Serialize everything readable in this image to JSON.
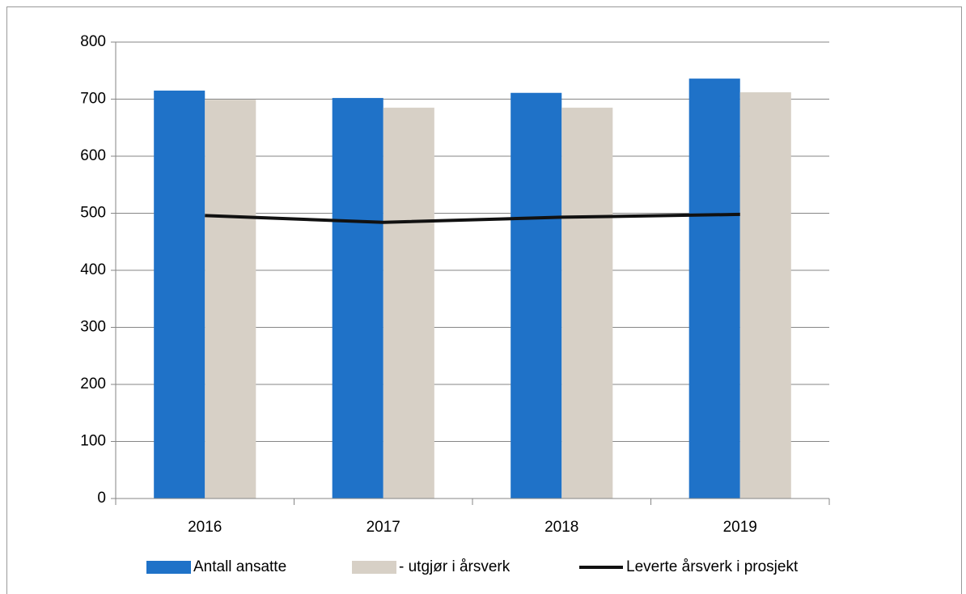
{
  "chart_data": {
    "type": "bar",
    "categories": [
      "2016",
      "2017",
      "2018",
      "2019"
    ],
    "series": [
      {
        "name": "Antall ansatte",
        "color": "#1f72c8",
        "values": [
          715,
          702,
          711,
          736
        ]
      },
      {
        "name": "- utgjør i årsverk",
        "color": "#d7d0c6",
        "values": [
          699,
          685,
          685,
          712
        ]
      },
      {
        "name": "Leverte årsverk i prosjekt",
        "color": "#111111",
        "type": "line",
        "values": [
          496,
          484,
          493,
          498
        ]
      }
    ],
    "ylim": [
      0,
      800
    ],
    "yticks": [
      0,
      100,
      200,
      300,
      400,
      500,
      600,
      700,
      800
    ],
    "grid": true,
    "legend": "bottom"
  }
}
